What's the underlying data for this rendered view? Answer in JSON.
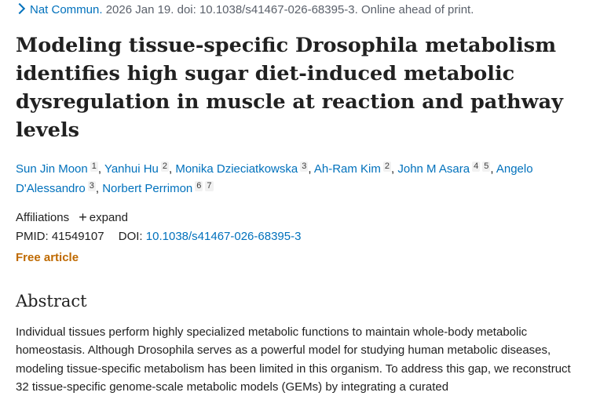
{
  "journal": {
    "name": "Nat Commun.",
    "citation": "2026 Jan 19. doi: 10.1038/s41467-026-68395-3. Online ahead of print."
  },
  "title": "Modeling tissue-specific Drosophila metabolism identifies high sugar diet-induced metabolic dysregulation in muscle at reaction and pathway levels",
  "authors": [
    {
      "name": "Sun Jin Moon",
      "affs": [
        "1"
      ],
      "sep": ","
    },
    {
      "name": "Yanhui Hu",
      "affs": [
        "2"
      ],
      "sep": ","
    },
    {
      "name": "Monika Dzieciatkowska",
      "affs": [
        "3"
      ],
      "sep": ","
    },
    {
      "name": "Ah-Ram Kim",
      "affs": [
        "2"
      ],
      "sep": ","
    },
    {
      "name": "John M Asara",
      "affs": [
        "4",
        "5"
      ],
      "sep": ","
    },
    {
      "name": "Angelo D'Alessandro",
      "affs": [
        "3"
      ],
      "sep": ","
    },
    {
      "name": "Norbert Perrimon",
      "affs": [
        "6",
        "7"
      ],
      "sep": ""
    }
  ],
  "affiliations": {
    "label": "Affiliations",
    "plus": "+",
    "expand": "expand"
  },
  "ids": {
    "pmid_label": "PMID:",
    "pmid": "41549107",
    "doi_label": "DOI:",
    "doi": "10.1038/s41467-026-68395-3"
  },
  "free_article": "Free article",
  "abstract": {
    "heading": "Abstract",
    "text": "Individual tissues perform highly specialized metabolic functions to maintain whole-body metabolic homeostasis. Although Drosophila serves as a powerful model for studying human metabolic diseases, modeling tissue-specific metabolism has been limited in this organism. To address this gap, we reconstruct 32 tissue-specific genome-scale metabolic models (GEMs) by integrating a curated"
  }
}
